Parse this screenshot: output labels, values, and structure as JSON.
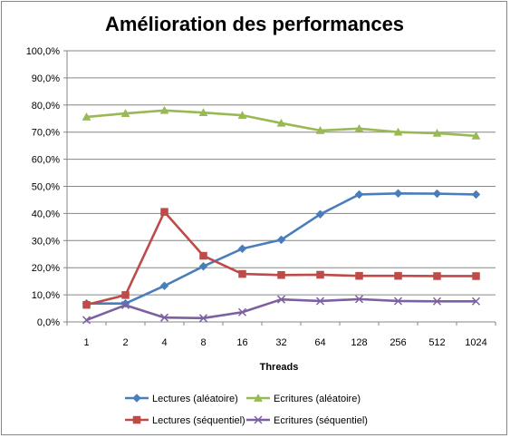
{
  "chart_data": {
    "type": "line",
    "title": "Amélioration des performances",
    "xlabel": "Threads",
    "ylabel": "",
    "categories": [
      "1",
      "2",
      "4",
      "8",
      "16",
      "32",
      "64",
      "128",
      "256",
      "512",
      "1024"
    ],
    "ylim": [
      0,
      100
    ],
    "y_ticks": [
      "0,0%",
      "10,0%",
      "20,0%",
      "30,0%",
      "40,0%",
      "50,0%",
      "60,0%",
      "70,0%",
      "80,0%",
      "90,0%",
      "100,0%"
    ],
    "grid": "horizontal",
    "legend_position": "bottom",
    "series": [
      {
        "name": "Lectures (aléatoire)",
        "color": "#4a7ebb",
        "marker": "diamond",
        "values": [
          6.8,
          6.8,
          13.3,
          20.5,
          27.0,
          30.3,
          39.7,
          47.0,
          47.4,
          47.3,
          47.0
        ]
      },
      {
        "name": "Ecritures (aléatoire)",
        "color": "#98b954",
        "marker": "triangle",
        "values": [
          75.6,
          76.9,
          78.0,
          77.2,
          76.2,
          73.3,
          70.6,
          71.3,
          70.0,
          69.6,
          68.6
        ]
      },
      {
        "name": "Lectures (séquentiel)",
        "color": "#be4b48",
        "marker": "square",
        "values": [
          6.3,
          9.9,
          40.6,
          24.4,
          17.7,
          17.3,
          17.4,
          17.0,
          17.0,
          16.9,
          16.9
        ]
      },
      {
        "name": "Ecritures (séquentiel)",
        "color": "#7d60a0",
        "marker": "x",
        "values": [
          0.7,
          6.2,
          1.6,
          1.4,
          3.6,
          8.3,
          7.7,
          8.4,
          7.7,
          7.6,
          7.6
        ]
      }
    ]
  }
}
